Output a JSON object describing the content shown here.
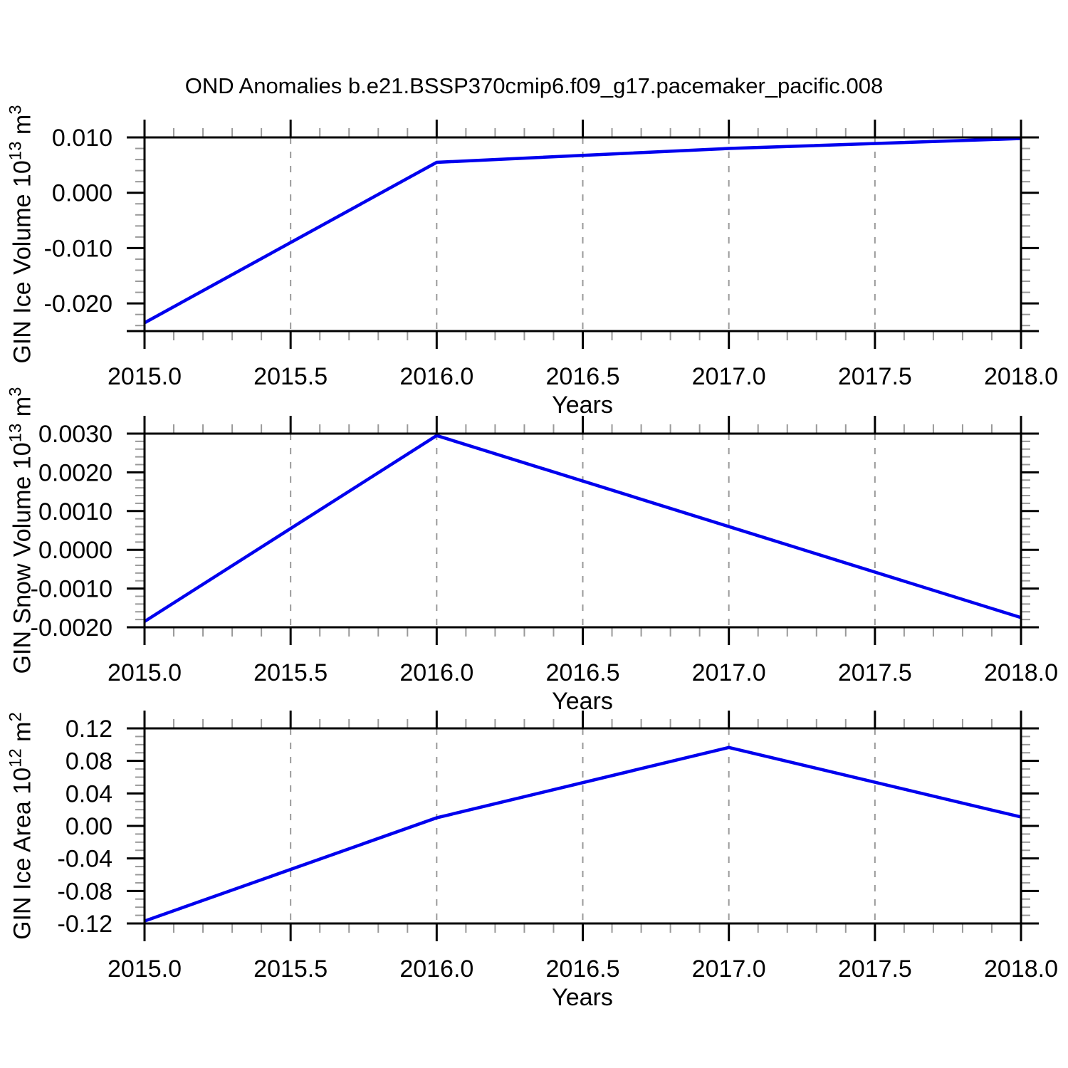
{
  "title": "OND Anomalies b.e21.BSSP370cmip6.f09_g17.pacemaker_pacific.008",
  "colors": {
    "line": "#0000ee",
    "frame": "#000000",
    "major_tick": "#000000",
    "minor_tick": "#999999",
    "gridline": "#999999",
    "text": "#000000"
  },
  "chart_data": [
    {
      "type": "line",
      "x": [
        2015.0,
        2016.0,
        2017.0,
        2018.0
      ],
      "values": [
        -0.0235,
        0.0055,
        0.008,
        0.0098
      ],
      "ylabel_parts": {
        "base1": "GIN Ice Volume 10",
        "sup1": "13",
        "base2": " m",
        "sup2": "3"
      },
      "xlabel": "Years",
      "ylim": [
        -0.025,
        0.01
      ],
      "ytick_values": [
        0.01,
        0.0,
        -0.01,
        -0.02
      ],
      "ytick_labels": [
        "0.010",
        "0.000",
        "-0.010",
        "-0.020"
      ],
      "y_minor_step": 0.002,
      "xlim": [
        2015.0,
        2018.0
      ],
      "xtick_values": [
        2015.0,
        2015.5,
        2016.0,
        2016.5,
        2017.0,
        2017.5,
        2018.0
      ],
      "xtick_labels": [
        "2015.0",
        "2015.5",
        "2016.0",
        "2016.5",
        "2017.0",
        "2017.5",
        "2018.0"
      ],
      "x_minor_step": 0.1,
      "grid_x_values": [
        2015.5,
        2016.0,
        2016.5,
        2017.0,
        2017.5
      ],
      "grid_on": true,
      "legend": "none"
    },
    {
      "type": "line",
      "x": [
        2015.0,
        2016.0,
        2017.0,
        2018.0
      ],
      "values": [
        -0.00185,
        0.00295,
        0.0006,
        -0.00175
      ],
      "ylabel_parts": {
        "base1": "GIN Snow Volume 10",
        "sup1": "13",
        "base2": " m",
        "sup2": "3"
      },
      "xlabel": "Years",
      "ylim": [
        -0.002,
        0.003
      ],
      "ytick_values": [
        0.003,
        0.002,
        0.001,
        0.0,
        -0.001,
        -0.002
      ],
      "ytick_labels": [
        "0.0030",
        "0.0020",
        "0.0010",
        "0.0000",
        "-0.0010",
        "-0.0020"
      ],
      "y_minor_step": 0.0002,
      "xlim": [
        2015.0,
        2018.0
      ],
      "xtick_values": [
        2015.0,
        2015.5,
        2016.0,
        2016.5,
        2017.0,
        2017.5,
        2018.0
      ],
      "xtick_labels": [
        "2015.0",
        "2015.5",
        "2016.0",
        "2016.5",
        "2017.0",
        "2017.5",
        "2018.0"
      ],
      "x_minor_step": 0.1,
      "grid_x_values": [
        2015.5,
        2016.0,
        2016.5,
        2017.0,
        2017.5
      ],
      "grid_on": true,
      "legend": "none"
    },
    {
      "type": "line",
      "x": [
        2015.0,
        2016.0,
        2017.0,
        2018.0
      ],
      "values": [
        -0.117,
        0.01,
        0.0965,
        0.011
      ],
      "ylabel_parts": {
        "base1": "GIN Ice Area 10",
        "sup1": "12",
        "base2": " m",
        "sup2": "2"
      },
      "xlabel": "Years",
      "ylim": [
        -0.12,
        0.12
      ],
      "ytick_values": [
        0.12,
        0.08,
        0.04,
        0.0,
        -0.04,
        -0.08,
        -0.12
      ],
      "ytick_labels": [
        "0.12",
        "0.08",
        "0.04",
        "0.00",
        "-0.04",
        "-0.08",
        "-0.12"
      ],
      "y_minor_step": 0.01,
      "xlim": [
        2015.0,
        2018.0
      ],
      "xtick_values": [
        2015.0,
        2015.5,
        2016.0,
        2016.5,
        2017.0,
        2017.5,
        2018.0
      ],
      "xtick_labels": [
        "2015.0",
        "2015.5",
        "2016.0",
        "2016.5",
        "2017.0",
        "2017.5",
        "2018.0"
      ],
      "x_minor_step": 0.1,
      "grid_x_values": [
        2015.5,
        2016.0,
        2016.5,
        2017.0,
        2017.5
      ],
      "grid_on": true,
      "legend": "none"
    }
  ]
}
